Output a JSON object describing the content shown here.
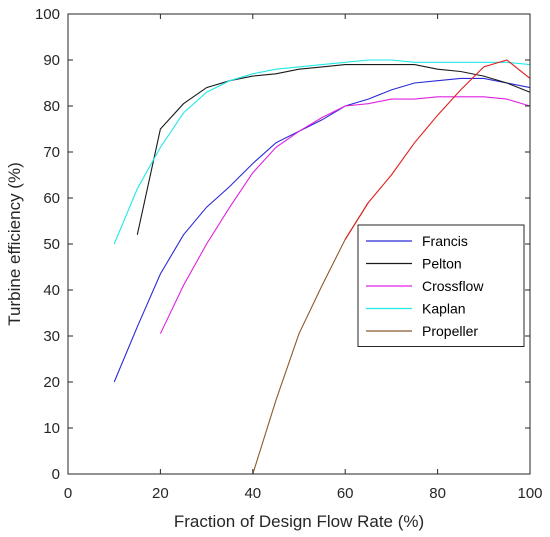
{
  "chart_data": {
    "type": "line",
    "title": "",
    "xlabel": "Fraction of Design Flow Rate (%)",
    "ylabel": "Turbine efficiency (%)",
    "xlim": [
      0,
      100
    ],
    "ylim": [
      0,
      100
    ],
    "xticks": [
      "0",
      "20",
      "40",
      "60",
      "80",
      "100"
    ],
    "yticks": [
      "0",
      "10",
      "20",
      "30",
      "40",
      "50",
      "60",
      "70",
      "80",
      "90",
      "100"
    ],
    "grid": false,
    "legend_position": "center-right",
    "series": [
      {
        "name": "Francis",
        "color": "#2a2ad8",
        "points": [
          [
            10,
            20
          ],
          [
            15,
            32
          ],
          [
            20,
            43.5
          ],
          [
            25,
            52
          ],
          [
            30,
            58
          ],
          [
            35,
            62.5
          ],
          [
            40,
            67.5
          ],
          [
            45,
            72
          ],
          [
            50,
            74.5
          ],
          [
            55,
            77
          ],
          [
            60,
            80
          ],
          [
            65,
            81.5
          ],
          [
            70,
            83.5
          ],
          [
            75,
            85
          ],
          [
            80,
            85.5
          ],
          [
            85,
            86
          ],
          [
            90,
            86
          ],
          [
            95,
            85
          ],
          [
            100,
            84
          ]
        ]
      },
      {
        "name": "Pelton",
        "color": "#1a1a1a",
        "points": [
          [
            15,
            52
          ],
          [
            20,
            75
          ],
          [
            25,
            80.5
          ],
          [
            30,
            84
          ],
          [
            35,
            85.5
          ],
          [
            40,
            86.5
          ],
          [
            45,
            87
          ],
          [
            50,
            88
          ],
          [
            55,
            88.5
          ],
          [
            60,
            89
          ],
          [
            65,
            89
          ],
          [
            70,
            89
          ],
          [
            75,
            89
          ],
          [
            80,
            88
          ],
          [
            85,
            87.5
          ],
          [
            90,
            86.5
          ],
          [
            95,
            85
          ],
          [
            100,
            83
          ]
        ]
      },
      {
        "name": "Crossflow",
        "color": "#e020e0",
        "points": [
          [
            20,
            30.5
          ],
          [
            25,
            41
          ],
          [
            30,
            50
          ],
          [
            35,
            58
          ],
          [
            40,
            65.5
          ],
          [
            45,
            71
          ],
          [
            50,
            74.5
          ],
          [
            55,
            77.5
          ],
          [
            60,
            80
          ],
          [
            65,
            80.5
          ],
          [
            70,
            81.5
          ],
          [
            75,
            81.5
          ],
          [
            80,
            82
          ],
          [
            85,
            82
          ],
          [
            90,
            82
          ],
          [
            95,
            81.5
          ],
          [
            100,
            80
          ]
        ]
      },
      {
        "name": "Kaplan",
        "color": "#22e8e8",
        "points": [
          [
            10,
            50
          ],
          [
            15,
            62
          ],
          [
            20,
            71
          ],
          [
            25,
            78.5
          ],
          [
            30,
            83
          ],
          [
            35,
            85.5
          ],
          [
            40,
            87
          ],
          [
            45,
            88
          ],
          [
            50,
            88.5
          ],
          [
            55,
            89
          ],
          [
            60,
            89.5
          ],
          [
            65,
            90
          ],
          [
            70,
            90
          ],
          [
            75,
            89.5
          ],
          [
            80,
            89.5
          ],
          [
            85,
            89.5
          ],
          [
            90,
            89.5
          ],
          [
            95,
            89.5
          ],
          [
            100,
            89
          ]
        ]
      },
      {
        "name": "Propeller",
        "color": "#e02020",
        "stroke_low_color": "#8b5a2b",
        "points": [
          [
            40,
            0
          ],
          [
            45,
            16
          ],
          [
            50,
            30.5
          ],
          [
            55,
            41
          ],
          [
            60,
            51
          ],
          [
            65,
            59
          ],
          [
            70,
            65
          ],
          [
            75,
            72
          ],
          [
            80,
            78
          ],
          [
            85,
            83.5
          ],
          [
            90,
            88.5
          ],
          [
            95,
            90
          ],
          [
            100,
            86
          ]
        ]
      }
    ]
  }
}
